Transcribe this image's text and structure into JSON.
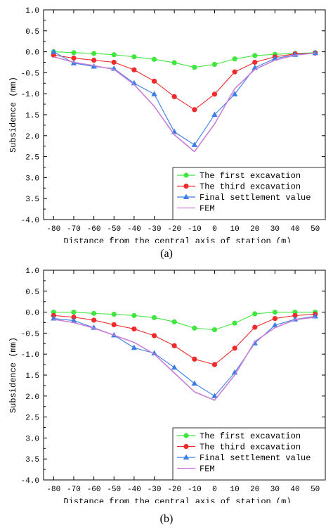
{
  "chart_data": [
    {
      "type": "line",
      "panel": "(a)",
      "xlabel": "Distance from the central axis of station (m)",
      "ylabel": "Subsidence (mm)",
      "xlim": [
        -85,
        55
      ],
      "ylim": [
        -4.0,
        1.0
      ],
      "y_inverted": true,
      "xticks": [
        -80,
        -70,
        -60,
        -50,
        -40,
        -30,
        -20,
        -10,
        0,
        10,
        20,
        30,
        40,
        50
      ],
      "yticks": [
        1.0,
        0.5,
        0.0,
        -0.5,
        -1.0,
        -1.5,
        -2.0,
        -2.5,
        -3.0,
        -3.5,
        -4.0
      ],
      "ytick_labels": [
        "1.0",
        "0.5",
        "0.0",
        "-0.5",
        "-1.0",
        "1.5",
        "2.0",
        "2.5",
        "3.0",
        "3.5",
        "-4.0"
      ],
      "legend_position": "bottom-right",
      "series": [
        {
          "name": "The first excavation",
          "color": "#3ee63e",
          "marker": "circle",
          "x": [
            -80,
            -70,
            -60,
            -50,
            -40,
            -30,
            -20,
            -10,
            0,
            10,
            20,
            30,
            40,
            50
          ],
          "y": [
            0.0,
            -0.02,
            -0.04,
            -0.07,
            -0.12,
            -0.18,
            -0.26,
            -0.37,
            -0.3,
            -0.17,
            -0.09,
            -0.06,
            -0.04,
            -0.02
          ]
        },
        {
          "name": "The third excavation",
          "color": "#ee2a2a",
          "marker": "circle",
          "x": [
            -80,
            -70,
            -60,
            -50,
            -40,
            -30,
            -20,
            -10,
            0,
            10,
            20,
            30,
            40,
            50
          ],
          "y": [
            -0.08,
            -0.15,
            -0.2,
            -0.25,
            -0.43,
            -0.7,
            -1.07,
            -1.38,
            -1.01,
            -0.48,
            -0.25,
            -0.12,
            -0.05,
            -0.03
          ]
        },
        {
          "name": "Final settlement value",
          "color": "#3a7de6",
          "marker": "triangle",
          "x": [
            -80,
            -70,
            -60,
            -50,
            -40,
            -30,
            -20,
            -10,
            0,
            10,
            20,
            30,
            40,
            50
          ],
          "y": [
            0.0,
            -0.27,
            -0.35,
            -0.4,
            -0.75,
            -1.01,
            -1.91,
            -2.22,
            -1.5,
            -1.01,
            -0.38,
            -0.16,
            -0.07,
            -0.03
          ]
        },
        {
          "name": "FEM",
          "color": "#c97fd6",
          "marker": "none",
          "x": [
            -80,
            -70,
            -60,
            -50,
            -40,
            -30,
            -20,
            -10,
            0,
            10,
            20,
            30,
            40,
            50
          ],
          "y": [
            -0.12,
            -0.25,
            -0.33,
            -0.42,
            -0.78,
            -1.3,
            -1.98,
            -2.38,
            -1.72,
            -0.88,
            -0.42,
            -0.2,
            -0.08,
            -0.03
          ]
        }
      ]
    },
    {
      "type": "line",
      "panel": "(b)",
      "xlabel": "Distance from the central axis of station (m)",
      "ylabel": "Subsidence (mm)",
      "xlim": [
        -85,
        55
      ],
      "ylim": [
        -4.0,
        1.0
      ],
      "y_inverted": true,
      "xticks": [
        -80,
        -70,
        -60,
        -50,
        -40,
        -30,
        -20,
        -10,
        0,
        10,
        20,
        30,
        40,
        50
      ],
      "yticks": [
        1.0,
        0.5,
        0.0,
        -0.5,
        -1.0,
        -1.5,
        -2.0,
        -2.5,
        -3.0,
        -3.5,
        -4.0
      ],
      "ytick_labels": [
        "1.0",
        "0.5",
        "0.0",
        "-0.5",
        "-1.0",
        "1.5",
        "2.0",
        "2.5",
        "3.0",
        "3.5",
        "-4.0"
      ],
      "legend_position": "bottom-right",
      "series": [
        {
          "name": "The first excavation",
          "color": "#3ee63e",
          "marker": "circle",
          "x": [
            -80,
            -70,
            -60,
            -50,
            -40,
            -30,
            -20,
            -10,
            0,
            10,
            20,
            30,
            40,
            50
          ],
          "y": [
            0.0,
            0.0,
            -0.03,
            -0.05,
            -0.08,
            -0.13,
            -0.23,
            -0.38,
            -0.42,
            -0.26,
            -0.04,
            0.0,
            0.0,
            0.0
          ]
        },
        {
          "name": "The third excavation",
          "color": "#ee2a2a",
          "marker": "circle",
          "x": [
            -80,
            -70,
            -60,
            -50,
            -40,
            -30,
            -20,
            -10,
            0,
            10,
            20,
            30,
            40,
            50
          ],
          "y": [
            -0.08,
            -0.12,
            -0.19,
            -0.3,
            -0.4,
            -0.56,
            -0.8,
            -1.12,
            -1.25,
            -0.86,
            -0.36,
            -0.15,
            -0.08,
            -0.05
          ]
        },
        {
          "name": "Final settlement value",
          "color": "#3a7de6",
          "marker": "triangle",
          "x": [
            -80,
            -70,
            -60,
            -50,
            -40,
            -30,
            -20,
            -10,
            0,
            10,
            20,
            30,
            40,
            50
          ],
          "y": [
            -0.15,
            -0.2,
            -0.37,
            -0.55,
            -0.85,
            -0.98,
            -1.32,
            -1.7,
            -2.0,
            -1.44,
            -0.74,
            -0.31,
            -0.17,
            -0.1
          ]
        },
        {
          "name": "FEM",
          "color": "#c97fd6",
          "marker": "none",
          "x": [
            -80,
            -70,
            -60,
            -50,
            -40,
            -30,
            -20,
            -10,
            0,
            10,
            20,
            30,
            40,
            50
          ],
          "y": [
            -0.17,
            -0.25,
            -0.38,
            -0.55,
            -0.72,
            -1.0,
            -1.45,
            -1.9,
            -2.1,
            -1.5,
            -0.7,
            -0.37,
            -0.18,
            -0.12
          ]
        }
      ]
    }
  ]
}
